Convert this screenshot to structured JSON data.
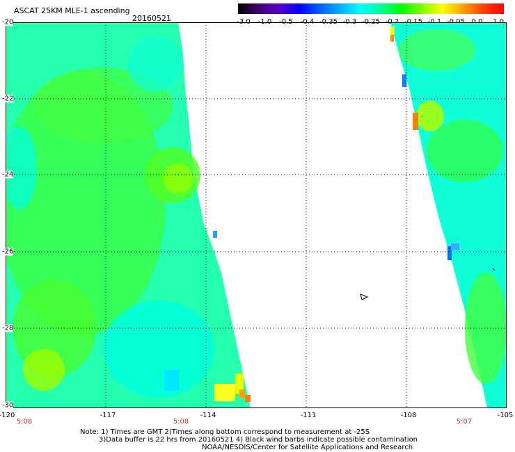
{
  "header": {
    "title": "ASCAT 25KM MLE-1 ascending",
    "date": "20160521"
  },
  "colorbar": {
    "ticks": [
      "-3.0",
      "-1.0",
      "-0.5",
      "-0.4",
      "-0.35",
      "-0.3",
      "-0.25",
      "-0.2",
      "-0.15",
      "-0.1",
      "-0.05",
      "0.0",
      "1.0"
    ],
    "colors": [
      "#000000",
      "#400070",
      "#5a00c8",
      "#0000ff",
      "#0060ff",
      "#00b0ff",
      "#00ffff",
      "#00ff90",
      "#00ff00",
      "#80ff00",
      "#ffff00",
      "#ffa000",
      "#ff4000",
      "#ff0000"
    ]
  },
  "map": {
    "lat_labels": [
      "-20",
      "-22",
      "-24",
      "-26",
      "-28",
      "-30"
    ],
    "lon_labels": [
      "-120",
      "-117",
      "-114",
      "-111",
      "-108",
      "-105"
    ],
    "time_labels": [
      "5:08",
      "5:08",
      "5:07"
    ],
    "colors": {
      "cyan": "#00ffff",
      "green": "#00ff00",
      "light_green": "#40ff80",
      "yellow_green": "#80ff00",
      "yellow": "#ffff00",
      "orange": "#ff9a00",
      "blue": "#0080ff"
    }
  },
  "notes": {
    "line1": "Note: 1) Times are GMT 2)Times along bottom correspond to measurement at -25S",
    "line2": "3)Data buffer is 22 hrs from 20160521 4) Black wind barbs indicate possible contamination",
    "line3": "NOAA/NESDIS/Center for Satellite Applications and Research"
  }
}
